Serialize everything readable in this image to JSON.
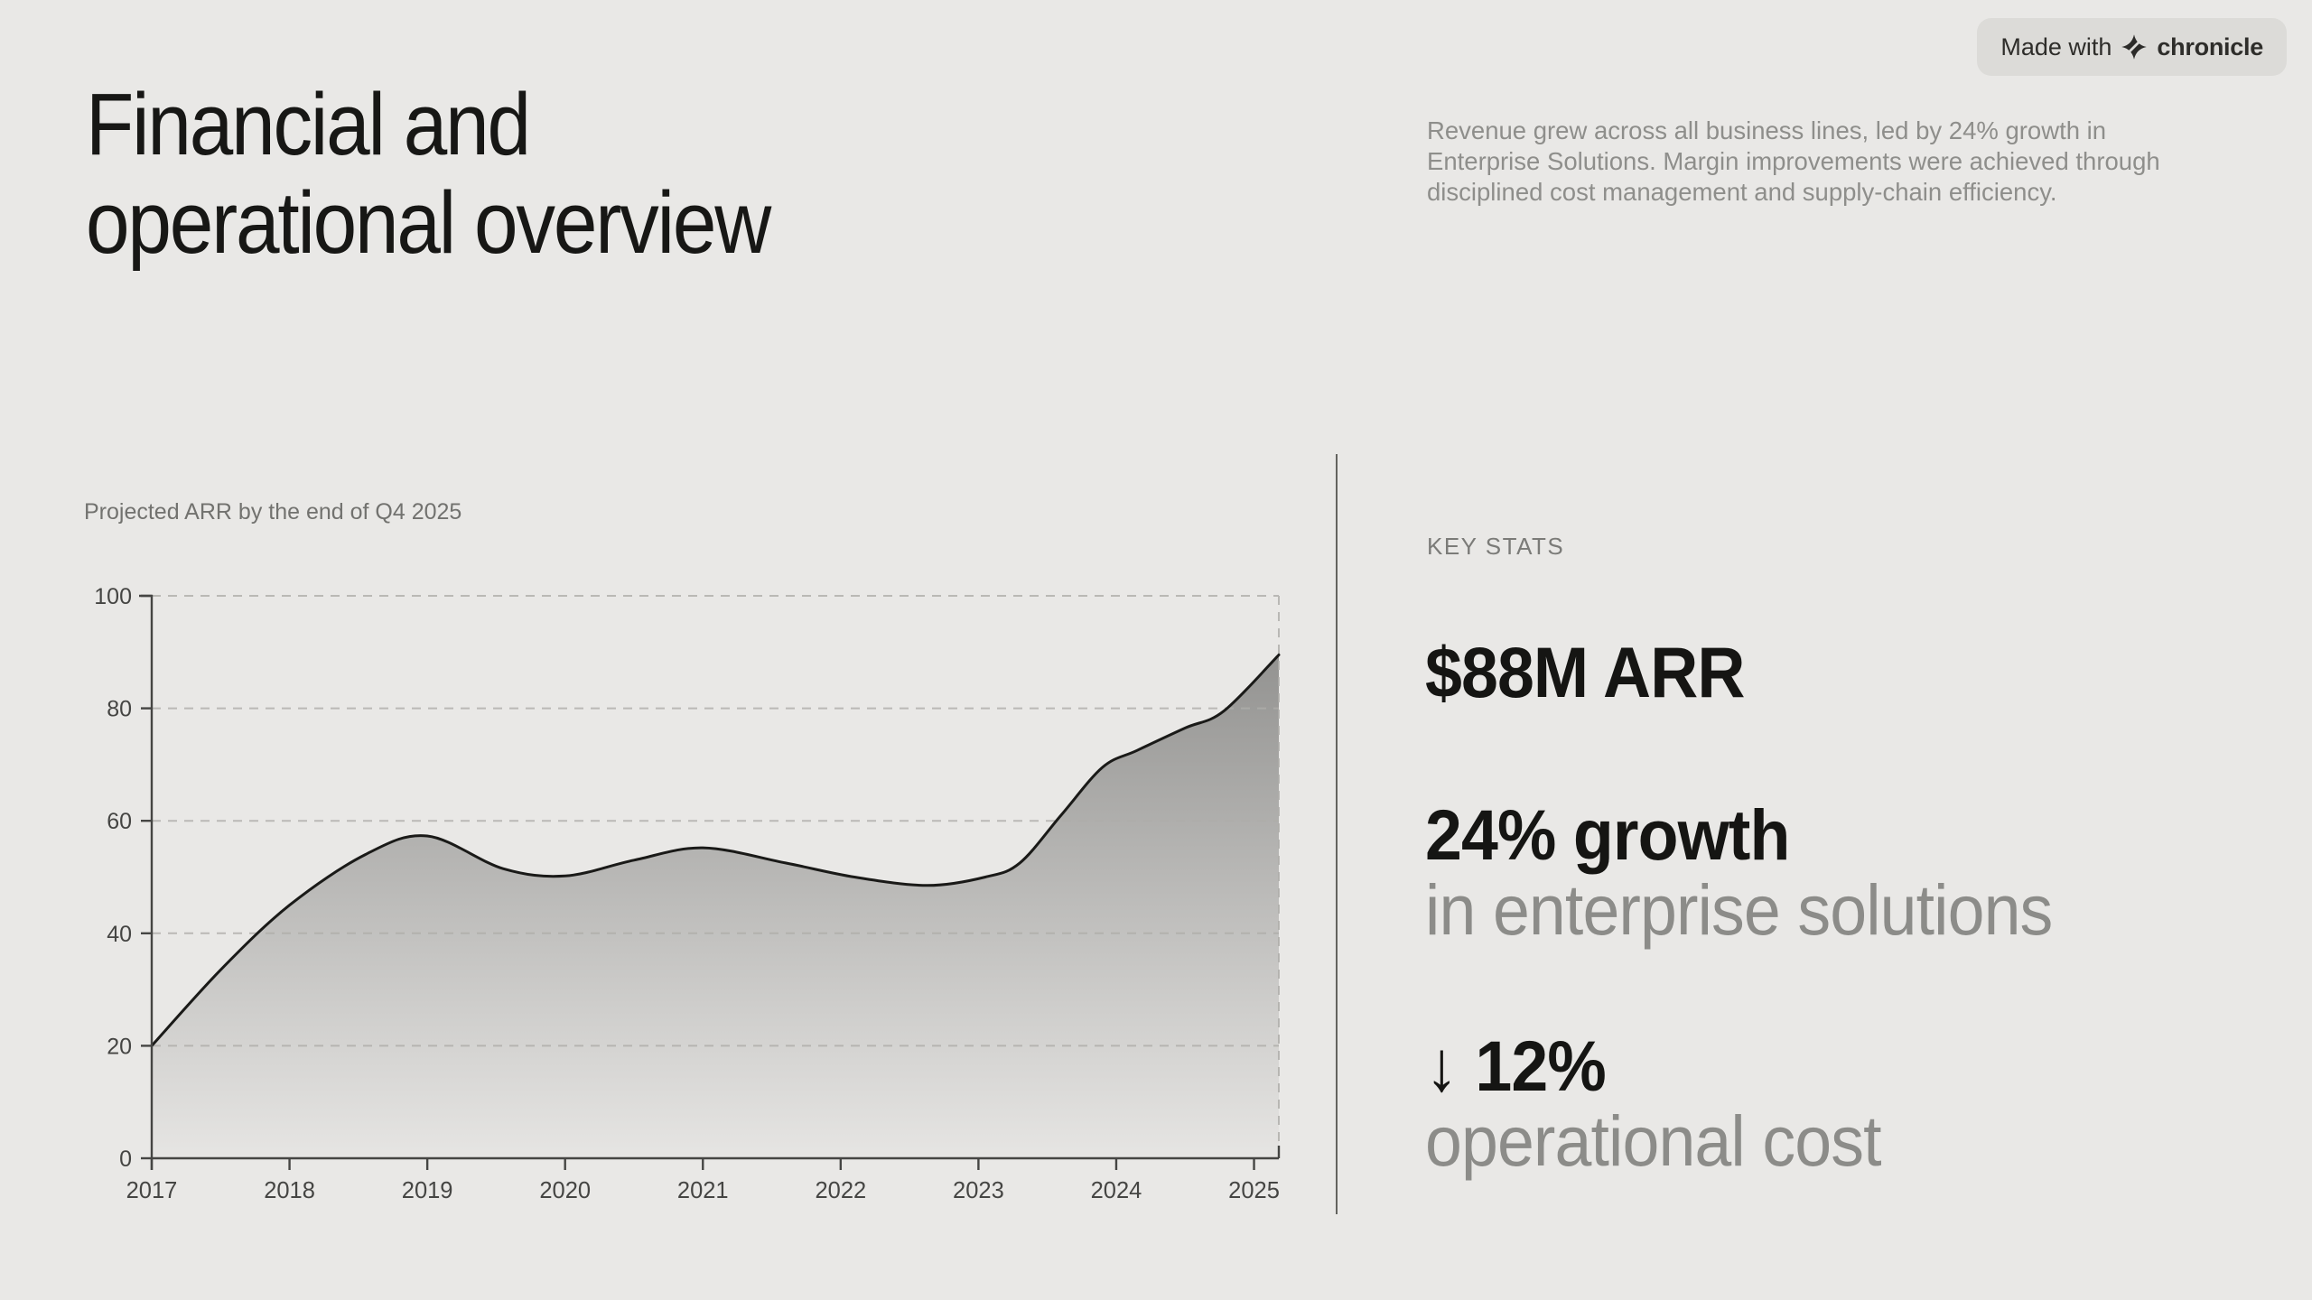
{
  "colors": {
    "background": "#e9e8e6",
    "badge_background": "#dcdbd8",
    "title_text": "#171715",
    "muted_text": "#8e8e8b",
    "stat_primary": "#151513",
    "stat_secondary": "#8c8c89",
    "divider": "#63635f"
  },
  "badge": {
    "prefix": "Made with",
    "brand": "chronicle"
  },
  "header": {
    "title_line1": "Financial and",
    "title_line2": "operational overview",
    "summary": "Revenue grew across all business lines, led by 24% growth in Enterprise Solutions. Margin improvements were achieved through disciplined cost management and supply-chain efficiency."
  },
  "chart_data": {
    "type": "area",
    "title": "Projected ARR by the end of Q4 2025",
    "categories": [
      2017,
      2018,
      2019,
      2020,
      2021,
      2022,
      2023,
      2024,
      2025
    ],
    "values": [
      20,
      45,
      57,
      50,
      55,
      50.5,
      49.5,
      71.5,
      88
    ],
    "spline": [
      [
        2017,
        20
      ],
      [
        2017.5,
        33.5
      ],
      [
        2018,
        45
      ],
      [
        2018.55,
        54
      ],
      [
        2019,
        57.3
      ],
      [
        2019.55,
        51.5
      ],
      [
        2020,
        50.2
      ],
      [
        2020.5,
        53
      ],
      [
        2021,
        55.2
      ],
      [
        2021.6,
        52.5
      ],
      [
        2022.1,
        50
      ],
      [
        2022.63,
        48.5
      ],
      [
        2023.05,
        50
      ],
      [
        2023.3,
        52.5
      ],
      [
        2023.6,
        61
      ],
      [
        2023.9,
        69.5
      ],
      [
        2024.15,
        72.5
      ],
      [
        2024.5,
        76.5
      ],
      [
        2024.78,
        79.5
      ],
      [
        2025.18,
        89.5
      ]
    ],
    "xlim": [
      2017,
      2025.18
    ],
    "ylim": [
      0,
      100
    ],
    "yticks": [
      0,
      20,
      40,
      60,
      80,
      100
    ],
    "xticks": [
      {
        "x": 2017,
        "label": "2017"
      },
      {
        "x": 2018,
        "label": "2018"
      },
      {
        "x": 2019,
        "label": "2019"
      },
      {
        "x": 2020,
        "label": "2020"
      },
      {
        "x": 2021,
        "label": "2021"
      },
      {
        "x": 2022,
        "label": "2022"
      },
      {
        "x": 2023,
        "label": "2023"
      },
      {
        "x": 2024,
        "label": "2024"
      },
      {
        "x": 2025,
        "label": "2025"
      }
    ],
    "grid": "dashed-horizontal-plus-right-edge",
    "legend": "none",
    "line_color": "#1a1a18",
    "area_fill": "#555553",
    "grid_color": "#aeada9",
    "axis_color": "#454543",
    "tick_color": "#454543"
  },
  "key_stats": {
    "label": "KEY STATS",
    "items": [
      {
        "primary": "$88M ARR",
        "secondary": ""
      },
      {
        "primary": "24% growth",
        "secondary": "in enterprise solutions"
      },
      {
        "arrow": "↓",
        "primary": " 12%",
        "secondary": "operational cost"
      }
    ]
  }
}
